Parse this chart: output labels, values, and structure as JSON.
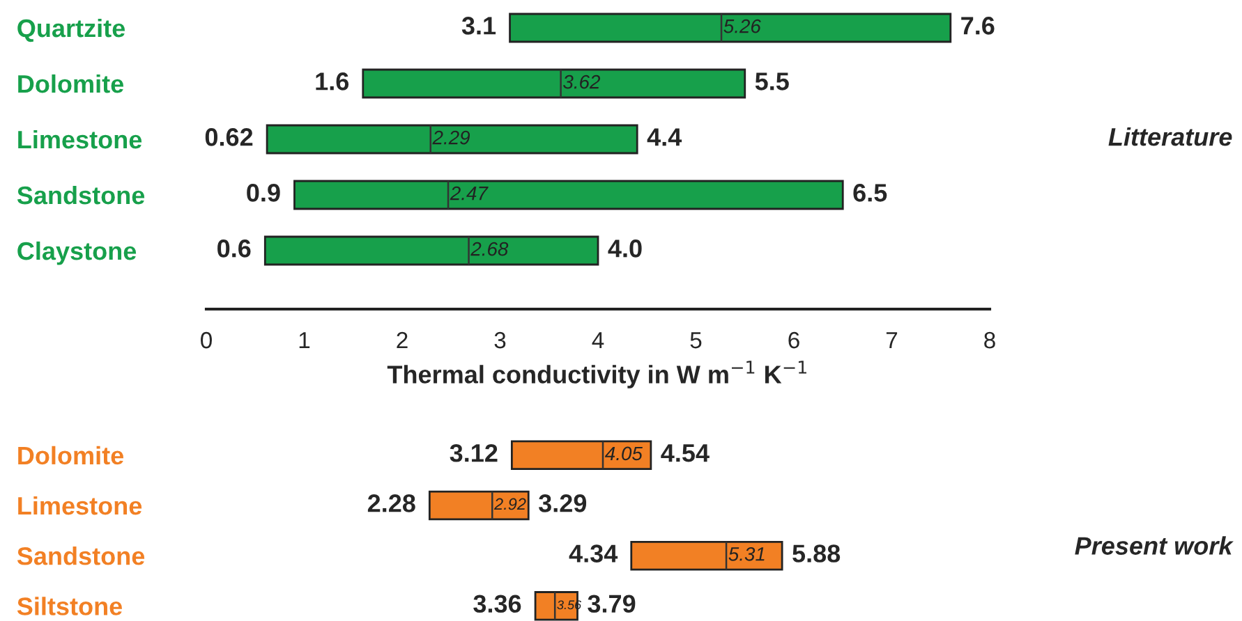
{
  "chart_data": [
    {
      "type": "box",
      "orientation": "horizontal",
      "categories": [
        "Quartzite",
        "Dolomite",
        "Limestone",
        "Sandstone",
        "Claystone"
      ],
      "series": [
        {
          "color": "#17a04b",
          "boxes": [
            {
              "low": 3.1,
              "q1": 3.1,
              "median": 5.26,
              "q3": 7.6,
              "high": 7.6
            },
            {
              "low": 1.6,
              "q1": 1.6,
              "median": 3.62,
              "q3": 5.5,
              "high": 5.5
            },
            {
              "low": 0.62,
              "q1": 0.62,
              "median": 2.29,
              "q3": 4.4,
              "high": 4.4
            },
            {
              "low": 0.9,
              "q1": 0.9,
              "median": 2.47,
              "q3": 6.5,
              "high": 6.5
            },
            {
              "low": 0.6,
              "q1": 0.6,
              "median": 2.68,
              "q3": 4.0,
              "high": 4.0
            }
          ]
        }
      ],
      "xlim": [
        0,
        8
      ],
      "xticks": [
        0,
        1,
        2,
        3,
        4,
        5,
        6,
        7,
        8
      ],
      "xlabel": "Thermal conductivity in W m$^{−1}$ K$^{−1}$",
      "annotations": [
        {
          "text": "3.1",
          "x": 3.1,
          "y": "Quartzite"
        },
        {
          "text": "5.26",
          "x": 5.26,
          "y": "Quartzite"
        },
        {
          "text": "7.6",
          "x": 7.6,
          "y": "Quartzite"
        },
        {
          "text": "1.6",
          "x": 1.6,
          "y": "Dolomite"
        },
        {
          "text": "3.62",
          "x": 3.62,
          "y": "Dolomite"
        },
        {
          "text": "5.5",
          "x": 5.5,
          "y": "Dolomite"
        },
        {
          "text": "0.62",
          "x": 0.62,
          "y": "Limestone"
        },
        {
          "text": "2.29",
          "x": 2.29,
          "y": "Limestone"
        },
        {
          "text": "4.4",
          "x": 4.4,
          "y": "Limestone"
        },
        {
          "text": "0.9",
          "x": 0.9,
          "y": "Sandstone"
        },
        {
          "text": "2.47",
          "x": 2.47,
          "y": "Sandstone"
        },
        {
          "text": "6.5",
          "x": 6.5,
          "y": "Sandstone"
        },
        {
          "text": "0.6",
          "x": 0.6,
          "y": "Claystone"
        },
        {
          "text": "2.68",
          "x": 2.68,
          "y": "Claystone"
        },
        {
          "text": "4.0",
          "x": 4.0,
          "y": "Claystone"
        },
        "Litterature"
      ]
    },
    {
      "type": "box",
      "orientation": "horizontal",
      "categories": [
        "Dolomite",
        "Limestone",
        "Sandstone",
        "Siltstone"
      ],
      "series": [
        {
          "color": "#f28024",
          "boxes": [
            {
              "low": 3.12,
              "q1": 3.12,
              "median": 4.05,
              "q3": 4.54,
              "high": 4.54
            },
            {
              "low": 2.28,
              "q1": 2.28,
              "median": 2.92,
              "q3": 3.29,
              "high": 3.29
            },
            {
              "low": 4.34,
              "q1": 4.34,
              "median": 5.31,
              "q3": 5.88,
              "high": 5.88
            },
            {
              "low": 3.36,
              "q1": 3.36,
              "median": 3.56,
              "q3": 3.79,
              "high": 3.79
            }
          ]
        }
      ],
      "xlim": [
        0,
        8
      ],
      "tick_labels": "y",
      "annotations": [
        {
          "text": "3.12",
          "x": 3.12,
          "y": "Dolomite"
        },
        {
          "text": "4.05",
          "x": 4.05,
          "y": "Dolomite"
        },
        {
          "text": "4.54",
          "x": 4.54,
          "y": "Dolomite"
        },
        {
          "text": "2.28",
          "x": 2.28,
          "y": "Limestone"
        },
        {
          "text": "2.92",
          "x": 2.92,
          "y": "Limestone"
        },
        {
          "text": "3.29",
          "x": 3.29,
          "y": "Limestone"
        },
        {
          "text": "4.34",
          "x": 4.34,
          "y": "Sandstone"
        },
        {
          "text": "5.31",
          "x": 5.31,
          "y": "Sandstone"
        },
        {
          "text": "5.88",
          "x": 5.88,
          "y": "Sandstone"
        },
        {
          "text": "3.36",
          "x": 3.36,
          "y": "Siltstone"
        },
        {
          "text": "3.56",
          "x": 3.56,
          "y": "Siltstone"
        },
        {
          "text": "3.79",
          "x": 3.79,
          "y": "Siltstone"
        },
        "Present work"
      ]
    }
  ]
}
